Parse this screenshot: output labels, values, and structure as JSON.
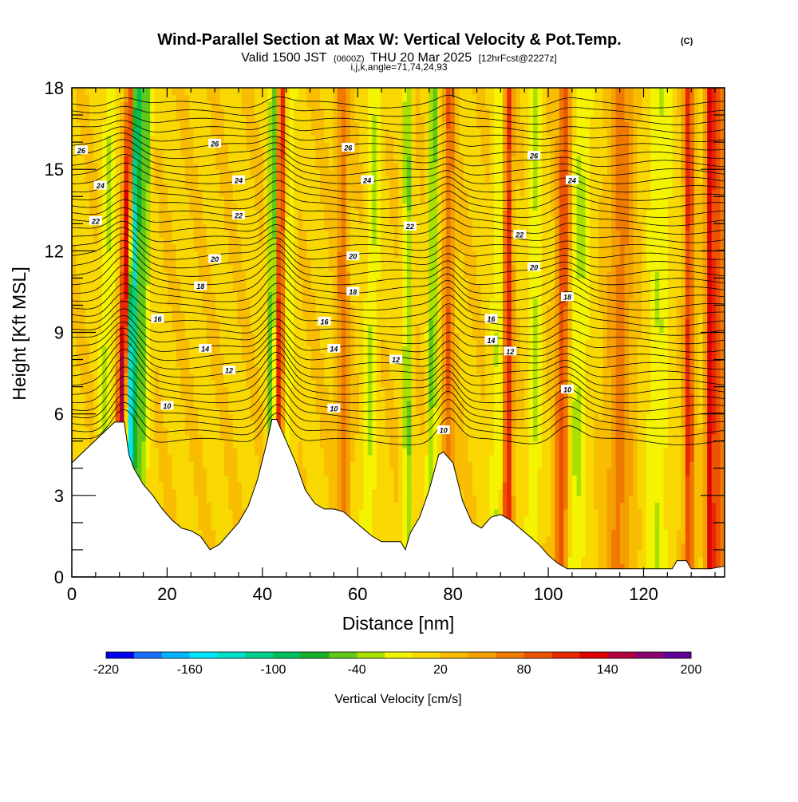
{
  "chart_data": {
    "type": "heatmap",
    "title": "Wind-Parallel Section at Max W: Vertical Velocity & Pot.Temp.",
    "title_suffix": "(C)",
    "subtitle_prefix": "Valid 1500 JST",
    "subtitle_utc": "(0600Z)",
    "subtitle_date": "THU 20 Mar 2025",
    "subtitle_fcst": "[12hrFcst@2227z]",
    "meta_line": "i,j,k,angle=71,74,24,93",
    "xlabel": "Distance [nm]",
    "ylabel": "Height [Kft MSL]",
    "xlim": [
      0,
      137
    ],
    "ylim": [
      0,
      18
    ],
    "x_ticks": [
      "0",
      "20",
      "40",
      "60",
      "80",
      "100",
      "120"
    ],
    "y_ticks": [
      "0",
      "3",
      "6",
      "9",
      "12",
      "15",
      "18"
    ],
    "x_tick_values": [
      0,
      20,
      40,
      60,
      80,
      100,
      120
    ],
    "y_tick_values": [
      0,
      3,
      6,
      9,
      12,
      15,
      18
    ],
    "colorbar": {
      "label": "Vertical Velocity [cm/s]",
      "min": -220,
      "max": 200,
      "step": 20,
      "tick_labels": [
        "-220",
        "-160",
        "-100",
        "-40",
        "20",
        "80",
        "140",
        "200"
      ],
      "tick_values": [
        -220,
        -160,
        -100,
        -40,
        20,
        80,
        140,
        200
      ],
      "colors": [
        "#0000ee",
        "#1870ff",
        "#00b4ff",
        "#00e6ff",
        "#00e0c8",
        "#00d08c",
        "#00c05a",
        "#18b028",
        "#60c818",
        "#a8e000",
        "#f4f400",
        "#f8d800",
        "#f8bc00",
        "#f4a000",
        "#f07a00",
        "#ec5200",
        "#e82800",
        "#e00000",
        "#b4003c",
        "#8c0070",
        "#600098"
      ]
    },
    "terrain_kft": [
      [
        0,
        4.2
      ],
      [
        3,
        4.7
      ],
      [
        6,
        5.2
      ],
      [
        9,
        5.7
      ],
      [
        11,
        5.7
      ],
      [
        12,
        4.5
      ],
      [
        13,
        4.0
      ],
      [
        15,
        3.4
      ],
      [
        17,
        3.0
      ],
      [
        19,
        2.5
      ],
      [
        21,
        2.1
      ],
      [
        23,
        1.8
      ],
      [
        25,
        1.7
      ],
      [
        27,
        1.5
      ],
      [
        29,
        1.0
      ],
      [
        31,
        1.2
      ],
      [
        33,
        1.6
      ],
      [
        35,
        2.0
      ],
      [
        37,
        2.6
      ],
      [
        39,
        3.6
      ],
      [
        41,
        5.0
      ],
      [
        42,
        5.8
      ],
      [
        43,
        5.8
      ],
      [
        45,
        5.0
      ],
      [
        47,
        4.2
      ],
      [
        49,
        3.2
      ],
      [
        51,
        2.7
      ],
      [
        53,
        2.5
      ],
      [
        55,
        2.5
      ],
      [
        57,
        2.4
      ],
      [
        59,
        2.1
      ],
      [
        61,
        1.8
      ],
      [
        63,
        1.5
      ],
      [
        65,
        1.3
      ],
      [
        67,
        1.3
      ],
      [
        69,
        1.3
      ],
      [
        70,
        1.0
      ],
      [
        71,
        1.6
      ],
      [
        73,
        2.2
      ],
      [
        75,
        3.2
      ],
      [
        77,
        4.5
      ],
      [
        78,
        4.6
      ],
      [
        80,
        4.2
      ],
      [
        82,
        2.8
      ],
      [
        84,
        2.0
      ],
      [
        86,
        1.8
      ],
      [
        88,
        2.2
      ],
      [
        90,
        2.3
      ],
      [
        92,
        2.1
      ],
      [
        94,
        1.8
      ],
      [
        96,
        1.5
      ],
      [
        98,
        1.2
      ],
      [
        100,
        0.8
      ],
      [
        102,
        0.5
      ],
      [
        104,
        0.3
      ],
      [
        110,
        0.3
      ],
      [
        118,
        0.3
      ],
      [
        126,
        0.3
      ],
      [
        127,
        0.6
      ],
      [
        129,
        0.6
      ],
      [
        130,
        0.3
      ],
      [
        134,
        0.3
      ],
      [
        137,
        0.4
      ]
    ],
    "w_bands": [
      {
        "x": 10.5,
        "dx": 0.18,
        "w": 140,
        "width": 1.1
      },
      {
        "x": 12.3,
        "dx": 0.1,
        "w": -170,
        "width": 1.0
      },
      {
        "x": 14.5,
        "dx": 0.1,
        "w": -70,
        "width": 1.3
      },
      {
        "x": 7.0,
        "dx": 0.12,
        "w": -40,
        "width": 1.4
      },
      {
        "x": 43.5,
        "dx": 0.05,
        "w": 100,
        "width": 0.9
      },
      {
        "x": 41.8,
        "dx": 0.05,
        "w": -80,
        "width": 0.9
      },
      {
        "x": 45.3,
        "dx": 0.05,
        "w": -30,
        "width": 1.3
      },
      {
        "x": 57.0,
        "dx": -0.02,
        "w": 55,
        "width": 1.2
      },
      {
        "x": 62.5,
        "dx": 0.12,
        "w": -40,
        "width": 1.5
      },
      {
        "x": 70.5,
        "dx": 0.0,
        "w": -60,
        "width": 0.9
      },
      {
        "x": 75.5,
        "dx": 0.05,
        "w": -60,
        "width": 1.0
      },
      {
        "x": 79.0,
        "dx": 0.02,
        "w": 60,
        "width": 1.1
      },
      {
        "x": 89.5,
        "dx": 0.08,
        "w": -40,
        "width": 1.6
      },
      {
        "x": 91.5,
        "dx": 0.0,
        "w": 110,
        "width": 1.0
      },
      {
        "x": 97.0,
        "dx": 0.05,
        "w": -40,
        "width": 1.4
      },
      {
        "x": 103.0,
        "dx": 0.05,
        "w": 80,
        "width": 1.4
      },
      {
        "x": 106.0,
        "dx": 0.1,
        "w": -40,
        "width": 2.2
      },
      {
        "x": 115.0,
        "dx": 0.05,
        "w": 50,
        "width": 2.5
      },
      {
        "x": 123.0,
        "dx": 0.05,
        "w": -35,
        "width": 2.5
      },
      {
        "x": 129.5,
        "dx": 0.0,
        "w": 90,
        "width": 1.0
      },
      {
        "x": 134.0,
        "dx": 0.0,
        "w": 120,
        "width": 1.0
      },
      {
        "x": 136.0,
        "dx": 0.0,
        "w": 70,
        "width": 1.0
      }
    ],
    "contour_labels": [
      {
        "text": "26",
        "x": 2,
        "y": 15.7
      },
      {
        "text": "26",
        "x": 30,
        "y": 15.95
      },
      {
        "text": "26",
        "x": 58,
        "y": 15.8
      },
      {
        "text": "26",
        "x": 97,
        "y": 15.5
      },
      {
        "text": "24",
        "x": 6,
        "y": 14.4
      },
      {
        "text": "24",
        "x": 35,
        "y": 14.6
      },
      {
        "text": "24",
        "x": 62,
        "y": 14.6
      },
      {
        "text": "24",
        "x": 105,
        "y": 14.6
      },
      {
        "text": "22",
        "x": 5,
        "y": 13.1
      },
      {
        "text": "22",
        "x": 35,
        "y": 13.3
      },
      {
        "text": "22",
        "x": 71,
        "y": 12.9
      },
      {
        "text": "22",
        "x": 94,
        "y": 12.6
      },
      {
        "text": "20",
        "x": 30,
        "y": 11.7
      },
      {
        "text": "20",
        "x": 59,
        "y": 11.8
      },
      {
        "text": "20",
        "x": 97,
        "y": 11.4
      },
      {
        "text": "18",
        "x": 27,
        "y": 10.7
      },
      {
        "text": "18",
        "x": 59,
        "y": 10.5
      },
      {
        "text": "18",
        "x": 104,
        "y": 10.3
      },
      {
        "text": "16",
        "x": 18,
        "y": 9.5
      },
      {
        "text": "16",
        "x": 53,
        "y": 9.4
      },
      {
        "text": "16",
        "x": 88,
        "y": 9.5
      },
      {
        "text": "14",
        "x": 28,
        "y": 8.4
      },
      {
        "text": "14",
        "x": 55,
        "y": 8.4
      },
      {
        "text": "14",
        "x": 88,
        "y": 8.7
      },
      {
        "text": "12",
        "x": 33,
        "y": 7.6
      },
      {
        "text": "12",
        "x": 68,
        "y": 8.0
      },
      {
        "text": "12",
        "x": 92,
        "y": 8.3
      },
      {
        "text": "10",
        "x": 20,
        "y": 6.3
      },
      {
        "text": "10",
        "x": 55,
        "y": 6.2
      },
      {
        "text": "10",
        "x": 78,
        "y": 5.4
      },
      {
        "text": "10",
        "x": 104,
        "y": 6.9
      }
    ]
  }
}
